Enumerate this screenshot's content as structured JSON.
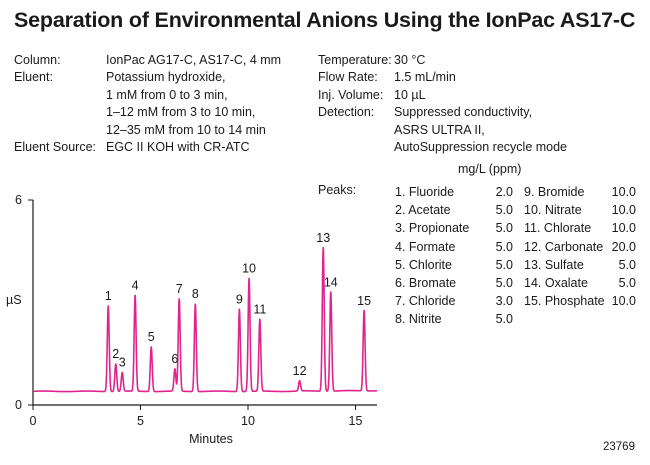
{
  "title": "Separation of Environmental Anions Using the IonPac AS17-C",
  "conditions_left": [
    {
      "label": "Column:",
      "lines": [
        "IonPac AG17-C, AS17-C, 4 mm"
      ]
    },
    {
      "label": "Eluent:",
      "lines": [
        "Potassium hydroxide,",
        "1 mM from 0 to 3 min,",
        "1–12 mM from 3 to 10 min,",
        "12–35 mM from 10 to 14 min"
      ]
    },
    {
      "label": "Eluent Source:",
      "lines": [
        "EGC II KOH with CR-ATC"
      ]
    }
  ],
  "conditions_right": [
    {
      "label": "Temperature:",
      "lines": [
        "30 °C"
      ]
    },
    {
      "label": "Flow Rate:",
      "lines": [
        "1.5 mL/min"
      ]
    },
    {
      "label": "Inj. Volume:",
      "lines": [
        "10 µL"
      ]
    },
    {
      "label": "Detection:",
      "lines": [
        "Suppressed conductivity,",
        "ASRS ULTRA II,",
        "AutoSuppression recycle mode"
      ]
    }
  ],
  "peaks_header": "Peaks:",
  "peaks_units": "mg/L (ppm)",
  "figure_number": "23769",
  "chart_data": {
    "type": "line",
    "title": "",
    "xlabel": "Minutes",
    "ylabel": "µS",
    "xlim": [
      0,
      16
    ],
    "ylim": [
      0,
      6
    ],
    "x_ticks": [
      0,
      5,
      10,
      15
    ],
    "y_ticks": [
      0,
      6
    ],
    "grid": false,
    "color": "#e0248d",
    "baseline": 0.4,
    "peaks": [
      {
        "label": "1",
        "name": "Fluoride",
        "conc": "2.0",
        "time": 3.5,
        "height": 2.9
      },
      {
        "label": "2",
        "name": "Acetate",
        "conc": "5.0",
        "time": 3.85,
        "height": 1.2
      },
      {
        "label": "3",
        "name": "Propionate",
        "conc": "5.0",
        "time": 4.15,
        "height": 0.95
      },
      {
        "label": "4",
        "name": "Formate",
        "conc": "5.0",
        "time": 4.75,
        "height": 3.2
      },
      {
        "label": "5",
        "name": "Chlorite",
        "conc": "5.0",
        "time": 5.5,
        "height": 1.7
      },
      {
        "label": "6",
        "name": "Bromate",
        "conc": "5.0",
        "time": 6.6,
        "height": 1.05
      },
      {
        "label": "7",
        "name": "Chloride",
        "conc": "3.0",
        "time": 6.8,
        "height": 3.1
      },
      {
        "label": "8",
        "name": "Nitrite",
        "conc": "5.0",
        "time": 7.55,
        "height": 2.95
      },
      {
        "label": "9",
        "name": "Bromide",
        "conc": "10.0",
        "time": 9.6,
        "height": 2.8
      },
      {
        "label": "10",
        "name": "Nitrate",
        "conc": "10.0",
        "time": 10.05,
        "height": 3.7
      },
      {
        "label": "11",
        "name": "Chlorate",
        "conc": "10.0",
        "time": 10.55,
        "height": 2.5
      },
      {
        "label": "12",
        "name": "Carbonate",
        "conc": "20.0",
        "time": 12.4,
        "height": 0.7
      },
      {
        "label": "13",
        "name": "Sulfate",
        "conc": "5.0",
        "time": 13.5,
        "height": 4.6
      },
      {
        "label": "14",
        "name": "Oxalate",
        "conc": "5.0",
        "time": 13.85,
        "height": 3.3
      },
      {
        "label": "15",
        "name": "Phosphate",
        "conc": "10.0",
        "time": 15.4,
        "height": 2.75
      }
    ]
  }
}
